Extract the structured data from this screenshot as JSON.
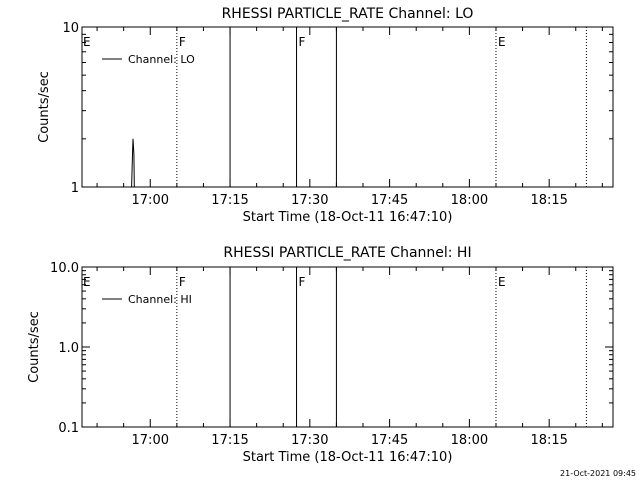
{
  "footer": {
    "timestamp": "21-Oct-2021 09:45"
  },
  "chart_data": [
    {
      "type": "line",
      "title": "RHESSI PARTICLE_RATE Channel: LO",
      "xlabel": "Start Time (18-Oct-11 16:47:10)",
      "ylabel": "Counts/sec",
      "yscale": "log",
      "ylim": [
        1,
        10
      ],
      "yticks": [
        "1",
        "10"
      ],
      "xlim": [
        "16:47:10",
        "18:27:00"
      ],
      "xticks": [
        "17:00",
        "17:15",
        "17:30",
        "17:45",
        "18:00",
        "18:15"
      ],
      "grid": false,
      "legend": {
        "position": "top-left",
        "entries": [
          "Channel: LO"
        ]
      },
      "series": [
        {
          "name": "Channel: LO",
          "x": [
            "16:56:30",
            "16:56:40",
            "16:56:45",
            "16:56:55",
            "16:57:00",
            "16:57:10"
          ],
          "y": [
            1,
            1.6,
            2.0,
            1.6,
            1,
            1
          ]
        }
      ],
      "vertical_lines": [
        {
          "time": "17:05:00",
          "style": "dotted",
          "label": "F"
        },
        {
          "time": "17:15:00",
          "style": "solid",
          "label": ""
        },
        {
          "time": "17:27:30",
          "style": "solid",
          "label": "F"
        },
        {
          "time": "17:35:00",
          "style": "solid",
          "label": ""
        },
        {
          "time": "18:05:00",
          "style": "dotted",
          "label": "E"
        },
        {
          "time": "18:22:00",
          "style": "dotted",
          "label": ""
        }
      ],
      "annotations": [
        {
          "label": "E",
          "position": "left-edge"
        }
      ]
    },
    {
      "type": "line",
      "title": "RHESSI PARTICLE_RATE Channel: HI",
      "xlabel": "Start Time (18-Oct-11 16:47:10)",
      "ylabel": "Counts/sec",
      "yscale": "log",
      "ylim": [
        0.1,
        10
      ],
      "yticks": [
        "0.1",
        "1.0",
        "10.0"
      ],
      "xlim": [
        "16:47:10",
        "18:27:00"
      ],
      "xticks": [
        "17:00",
        "17:15",
        "17:30",
        "17:45",
        "18:00",
        "18:15"
      ],
      "grid": false,
      "legend": {
        "position": "top-left",
        "entries": [
          "Channel: HI"
        ]
      },
      "series": [
        {
          "name": "Channel: HI",
          "x": [],
          "y": []
        }
      ],
      "vertical_lines": [
        {
          "time": "17:05:00",
          "style": "dotted",
          "label": "F"
        },
        {
          "time": "17:15:00",
          "style": "solid",
          "label": ""
        },
        {
          "time": "17:27:30",
          "style": "solid",
          "label": "F"
        },
        {
          "time": "17:35:00",
          "style": "solid",
          "label": ""
        },
        {
          "time": "18:05:00",
          "style": "dotted",
          "label": "E"
        },
        {
          "time": "18:22:00",
          "style": "dotted",
          "label": ""
        }
      ],
      "annotations": [
        {
          "label": "E",
          "position": "left-edge"
        }
      ]
    }
  ]
}
